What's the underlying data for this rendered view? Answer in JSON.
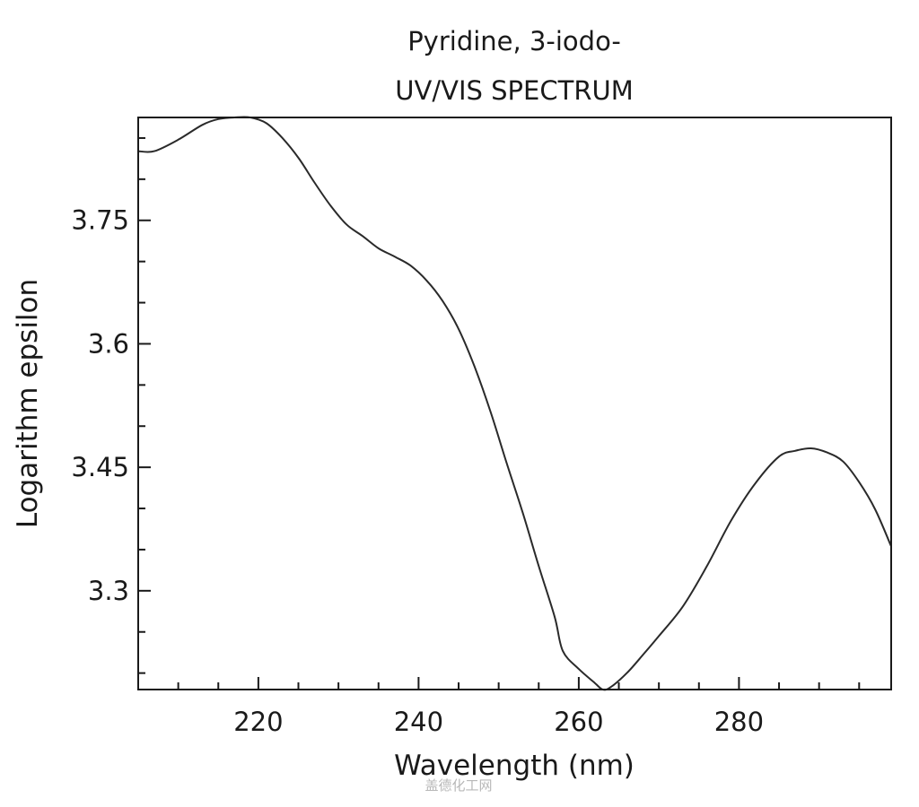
{
  "chart_data": {
    "type": "line",
    "title": "Pyridine, 3-iodo-",
    "subtitle": "UV/VIS SPECTRUM",
    "xlabel": "Wavelength (nm)",
    "ylabel": "Logarithm epsilon",
    "xlim": [
      205,
      299
    ],
    "ylim": [
      3.18,
      3.875
    ],
    "x_ticks": [
      220,
      240,
      260,
      280
    ],
    "y_ticks": [
      3.3,
      3.45,
      3.6,
      3.75
    ],
    "x_tick_labels": [
      "220",
      "240",
      "260",
      "280"
    ],
    "y_tick_labels": [
      "3.3",
      "3.45",
      "3.6",
      "3.75"
    ],
    "x_minor_step": 5,
    "y_minor_step": 0.05,
    "grid": false,
    "legend": "none",
    "line_color": "#2a2a2a",
    "series": [
      {
        "x": [
          205,
          207,
          210,
          213,
          215,
          217,
          219,
          221,
          223,
          225,
          227,
          229,
          231,
          233,
          235,
          237,
          239,
          241,
          243,
          245,
          247,
          249,
          251,
          253,
          255,
          257,
          258,
          260,
          262,
          263,
          264,
          266,
          268,
          270,
          273,
          276,
          279,
          282,
          285,
          287,
          289,
          291,
          293,
          295,
          297,
          299
        ],
        "y": [
          3.834,
          3.834,
          3.848,
          3.866,
          3.873,
          3.875,
          3.875,
          3.868,
          3.85,
          3.826,
          3.796,
          3.768,
          3.745,
          3.731,
          3.716,
          3.706,
          3.695,
          3.677,
          3.652,
          3.618,
          3.572,
          3.517,
          3.455,
          3.395,
          3.33,
          3.268,
          3.227,
          3.205,
          3.188,
          3.18,
          3.183,
          3.2,
          3.222,
          3.245,
          3.281,
          3.33,
          3.385,
          3.43,
          3.463,
          3.47,
          3.473,
          3.468,
          3.457,
          3.432,
          3.399,
          3.354
        ]
      }
    ]
  },
  "watermark": "盖德化工网"
}
